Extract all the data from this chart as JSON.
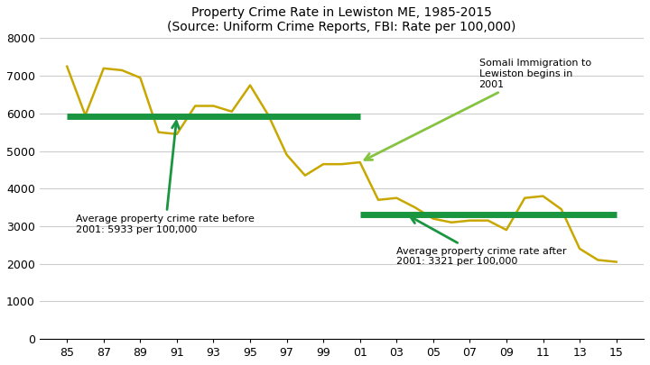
{
  "title_line1": "Property Crime Rate in Lewiston ME, 1985-2015",
  "title_line2": "(Source: Uniform Crime Reports, FBI: Rate per 100,000)",
  "years": [
    85,
    86,
    87,
    88,
    89,
    90,
    91,
    92,
    93,
    94,
    95,
    96,
    97,
    98,
    99,
    100,
    101,
    102,
    103,
    104,
    105,
    106,
    107,
    108,
    109,
    110,
    111,
    112,
    113,
    114,
    115
  ],
  "x_labels": [
    "85",
    "87",
    "89",
    "91",
    "93",
    "95",
    "97",
    "99",
    "01",
    "03",
    "05",
    "07",
    "09",
    "11",
    "13",
    "15"
  ],
  "x_ticks": [
    85,
    87,
    89,
    91,
    93,
    95,
    97,
    99,
    101,
    103,
    105,
    107,
    109,
    111,
    113,
    115
  ],
  "values": [
    7250,
    5950,
    7200,
    7150,
    6950,
    5500,
    5450,
    6200,
    6200,
    6050,
    6750,
    5950,
    4900,
    4350,
    4650,
    4650,
    4700,
    3700,
    3750,
    3500,
    3200,
    3100,
    3150,
    3150,
    2900,
    3750,
    3800,
    3450,
    2400,
    2100,
    2050
  ],
  "avg_before": 5933,
  "avg_after": 3321,
  "line_color": "#C8A800",
  "avg_color": "#1a9641",
  "somali_arrow_color": "#84c441",
  "split_x": 101,
  "ylim": [
    0,
    8000
  ],
  "yticks": [
    0,
    1000,
    2000,
    3000,
    4000,
    5000,
    6000,
    7000,
    8000
  ],
  "background_color": "#ffffff",
  "grid_color": "#cccccc"
}
